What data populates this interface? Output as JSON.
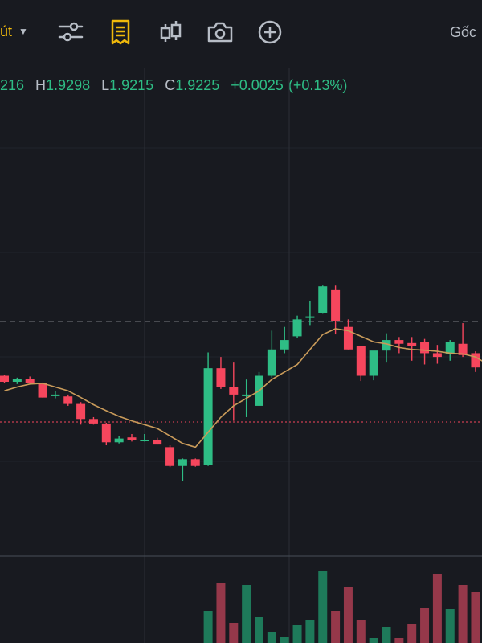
{
  "toolbar": {
    "interval_label": "út",
    "right_label": "Gốc",
    "icons": [
      "indicator-settings-icon",
      "order-book-icon",
      "candle-type-icon",
      "camera-icon",
      "add-icon"
    ]
  },
  "ohlc": {
    "open_value": "216",
    "high_label": "H",
    "high_value": "1.9298",
    "low_label": "L",
    "low_value": "1.9215",
    "close_label": "C",
    "close_value": "1.9225",
    "change": "+0.0025",
    "change_pct": "(+0.13%)"
  },
  "colors": {
    "background": "#181a20",
    "up": "#2ebd85",
    "down": "#f6465d",
    "ma_line": "#c99b5a",
    "accent": "#f0b90b",
    "grid": "#2b2f36"
  },
  "chart_data": {
    "type": "candlestick",
    "ylim": [
      1.86,
      1.99
    ],
    "price_line": 1.9225,
    "reference_line": 1.8957,
    "candles": [
      {
        "o": 1.908,
        "h": 1.9082,
        "l": 1.906,
        "c": 1.9064
      },
      {
        "o": 1.9064,
        "h": 1.9075,
        "l": 1.9058,
        "c": 1.9072
      },
      {
        "o": 1.9072,
        "h": 1.9078,
        "l": 1.906,
        "c": 1.906
      },
      {
        "o": 1.906,
        "h": 1.9062,
        "l": 1.9022,
        "c": 1.9022
      },
      {
        "o": 1.9027,
        "h": 1.904,
        "l": 1.902,
        "c": 1.903
      },
      {
        "o": 1.9025,
        "h": 1.903,
        "l": 1.9,
        "c": 1.9005
      },
      {
        "o": 1.9005,
        "h": 1.901,
        "l": 1.895,
        "c": 1.8965
      },
      {
        "o": 1.8965,
        "h": 1.897,
        "l": 1.895,
        "c": 1.8953
      },
      {
        "o": 1.8953,
        "h": 1.8955,
        "l": 1.8895,
        "c": 1.8903
      },
      {
        "o": 1.8903,
        "h": 1.892,
        "l": 1.89,
        "c": 1.8913
      },
      {
        "o": 1.8916,
        "h": 1.8925,
        "l": 1.8905,
        "c": 1.8908
      },
      {
        "o": 1.8908,
        "h": 1.8925,
        "l": 1.8905,
        "c": 1.891
      },
      {
        "o": 1.891,
        "h": 1.8915,
        "l": 1.8897,
        "c": 1.8897
      },
      {
        "o": 1.889,
        "h": 1.8895,
        "l": 1.8837,
        "c": 1.884
      },
      {
        "o": 1.884,
        "h": 1.886,
        "l": 1.88,
        "c": 1.8858
      },
      {
        "o": 1.8858,
        "h": 1.886,
        "l": 1.8838,
        "c": 1.884
      },
      {
        "o": 1.8842,
        "h": 1.9142,
        "l": 1.884,
        "c": 1.91
      },
      {
        "o": 1.91,
        "h": 1.913,
        "l": 1.9045,
        "c": 1.905
      },
      {
        "o": 1.905,
        "h": 1.9115,
        "l": 1.896,
        "c": 1.903
      },
      {
        "o": 1.903,
        "h": 1.907,
        "l": 1.897,
        "c": 1.903
      },
      {
        "o": 1.9,
        "h": 1.909,
        "l": 1.9,
        "c": 1.908
      },
      {
        "o": 1.908,
        "h": 1.92,
        "l": 1.9075,
        "c": 1.915
      },
      {
        "o": 1.915,
        "h": 1.921,
        "l": 1.914,
        "c": 1.9175
      },
      {
        "o": 1.9185,
        "h": 1.924,
        "l": 1.918,
        "c": 1.923
      },
      {
        "o": 1.9238,
        "h": 1.928,
        "l": 1.9215,
        "c": 1.9238
      },
      {
        "o": 1.9246,
        "h": 1.932,
        "l": 1.9245,
        "c": 1.9318
      },
      {
        "o": 1.9308,
        "h": 1.932,
        "l": 1.919,
        "c": 1.9225
      },
      {
        "o": 1.921,
        "h": 1.923,
        "l": 1.915,
        "c": 1.915
      },
      {
        "o": 1.916,
        "h": 1.916,
        "l": 1.9066,
        "c": 1.908
      },
      {
        "o": 1.908,
        "h": 1.914,
        "l": 1.9068,
        "c": 1.9147
      },
      {
        "o": 1.9147,
        "h": 1.9193,
        "l": 1.9115,
        "c": 1.9175
      },
      {
        "o": 1.9175,
        "h": 1.9183,
        "l": 1.914,
        "c": 1.9165
      },
      {
        "o": 1.9167,
        "h": 1.9183,
        "l": 1.912,
        "c": 1.916
      },
      {
        "o": 1.917,
        "h": 1.9178,
        "l": 1.911,
        "c": 1.914
      },
      {
        "o": 1.914,
        "h": 1.9162,
        "l": 1.9112,
        "c": 1.913
      },
      {
        "o": 1.9138,
        "h": 1.9175,
        "l": 1.912,
        "c": 1.917
      },
      {
        "o": 1.9165,
        "h": 1.922,
        "l": 1.913,
        "c": 1.9135
      },
      {
        "o": 1.914,
        "h": 1.9145,
        "l": 1.909,
        "c": 1.9102
      },
      {
        "o": 1.9095,
        "h": 1.91,
        "l": 1.907,
        "c": 1.908
      },
      {
        "o": 1.908,
        "h": 1.9085,
        "l": 1.906,
        "c": 1.907
      }
    ],
    "ma": [
      1.904,
      1.905,
      1.9058,
      1.906,
      1.905,
      1.904,
      1.9022,
      1.9003,
      1.8987,
      1.8972,
      1.896,
      1.895,
      1.894,
      1.892,
      1.89,
      1.889,
      1.893,
      1.897,
      1.9,
      1.902,
      1.904,
      1.907,
      1.909,
      1.911,
      1.915,
      1.919,
      1.9205,
      1.92,
      1.9185,
      1.917,
      1.9165,
      1.9155,
      1.915,
      1.9148,
      1.9145,
      1.914,
      1.9138,
      1.913,
      1.911,
      1.9095
    ],
    "volume": [
      0,
      0,
      0,
      0,
      0,
      0,
      0,
      0,
      0,
      0,
      0,
      0,
      0,
      0,
      0,
      0,
      40,
      75,
      25,
      72,
      32,
      14,
      8,
      22,
      28,
      89,
      40,
      70,
      28,
      6,
      20,
      6,
      24,
      44,
      86,
      42,
      72,
      64,
      60,
      40
    ]
  }
}
